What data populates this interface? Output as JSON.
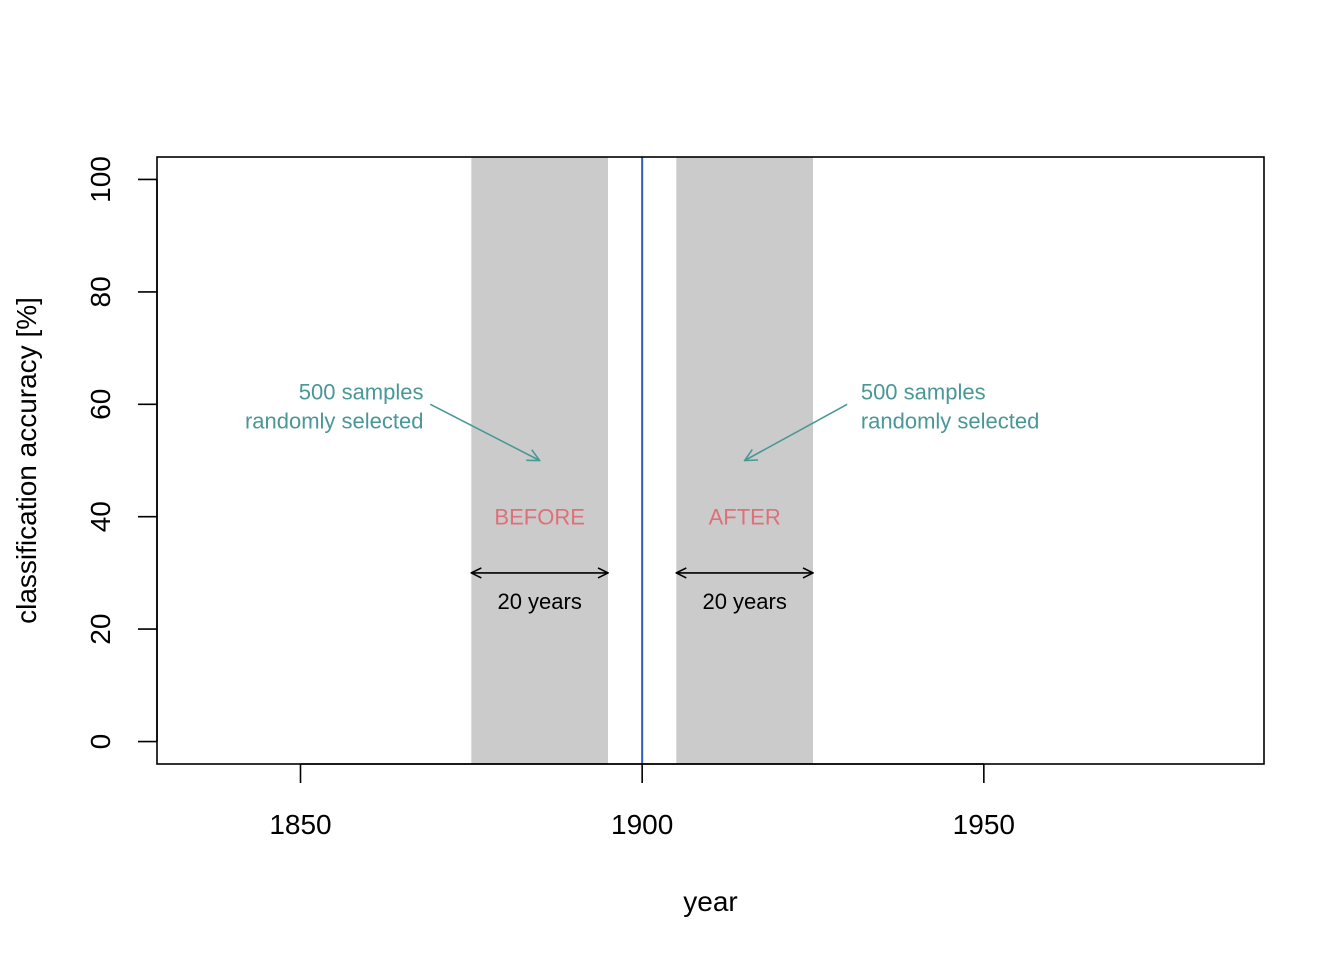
{
  "chart_data": {
    "type": "annotated-timeline",
    "xlabel": "year",
    "ylabel": "classification accuracy [%]",
    "xlim": [
      1829,
      1991
    ],
    "ylim": [
      -4,
      104
    ],
    "xticks": [
      1850,
      1900,
      1950
    ],
    "yticks": [
      0,
      20,
      40,
      60,
      80,
      100
    ],
    "grid": false,
    "event_line": {
      "x": 1900,
      "color": "#2e5eb8"
    },
    "shaded_periods": [
      {
        "label": "BEFORE",
        "x_start": 1875,
        "x_end": 1895,
        "label_y": 40,
        "color": "#cbcbcb"
      },
      {
        "label": "AFTER",
        "x_start": 1905,
        "x_end": 1925,
        "label_y": 40,
        "color": "#cbcbcb"
      }
    ],
    "span_arrows": [
      {
        "x_start": 1875,
        "x_end": 1895,
        "y": 30,
        "label": "20 years",
        "label_y": 25
      },
      {
        "x_start": 1905,
        "x_end": 1925,
        "y": 30,
        "label": "20 years",
        "label_y": 25
      }
    ],
    "annotations": [
      {
        "lines": [
          "500 samples",
          "randomly selected"
        ],
        "anchor": "end",
        "text_x": 1868,
        "text_y": 60,
        "arrow_from": [
          1869,
          60
        ],
        "arrow_to": [
          1885,
          50
        ]
      },
      {
        "lines": [
          "500 samples",
          "randomly selected"
        ],
        "anchor": "start",
        "text_x": 1932,
        "text_y": 60,
        "arrow_from": [
          1930,
          60
        ],
        "arrow_to": [
          1915,
          50
        ]
      }
    ],
    "colors": {
      "annotation": "#4a9797",
      "period_label": "#df6f78",
      "axis": "#000000"
    }
  }
}
